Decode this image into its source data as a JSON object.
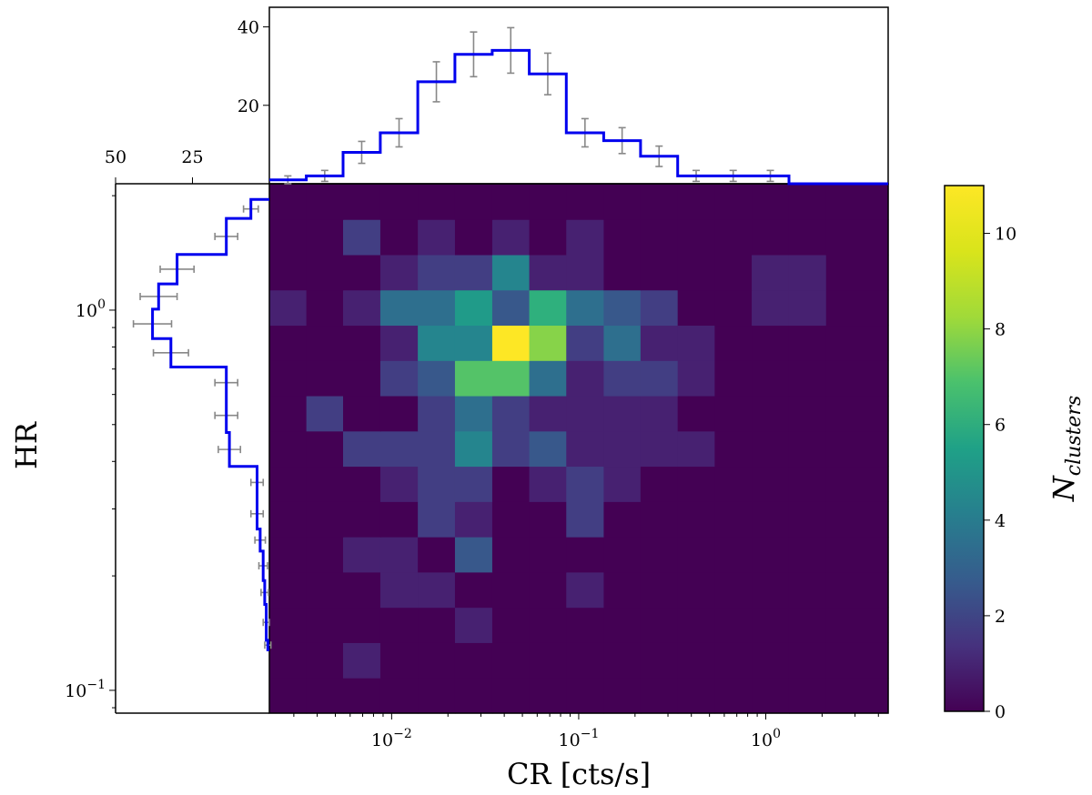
{
  "chart_data": {
    "type": "heatmap",
    "title": "",
    "xlabel": "CR [cts/s]",
    "ylabel": "HR",
    "colorbar_label": "N",
    "colorbar_label_sub": "clusters",
    "colormap": "viridis",
    "x_scale": "log",
    "y_scale": "log",
    "xlim": [
      0.00222,
      4.51
    ],
    "ylim": [
      0.0871,
      2.15
    ],
    "x_edges": [
      0.00222,
      0.0035,
      0.0055,
      0.0087,
      0.0138,
      0.0218,
      0.0345,
      0.0544,
      0.0858,
      0.136,
      0.214,
      0.338,
      0.533,
      0.841,
      1.33,
      2.1,
      4.51
    ],
    "y_edges": [
      0.0871,
      0.1079,
      0.1336,
      0.1654,
      0.2048,
      0.2535,
      0.3139,
      0.3887,
      0.4812,
      0.5958,
      0.7376,
      0.9132,
      1.1307,
      1.3998,
      1.7331,
      2.15
    ],
    "counts": [
      [
        0,
        0,
        0,
        0,
        0,
        0,
        0,
        0,
        0,
        0,
        0,
        0,
        0,
        0,
        0,
        0
      ],
      [
        0,
        0,
        1,
        0,
        0,
        0,
        0,
        0,
        0,
        0,
        0,
        0,
        0,
        0,
        0,
        0
      ],
      [
        0,
        0,
        0,
        0,
        0,
        1,
        0,
        0,
        0,
        0,
        0,
        0,
        0,
        0,
        0,
        0
      ],
      [
        0,
        0,
        0,
        1,
        1,
        0,
        0,
        0,
        1,
        0,
        0,
        0,
        0,
        0,
        0,
        0
      ],
      [
        0,
        0,
        1,
        1,
        0,
        3,
        0,
        0,
        0,
        0,
        0,
        0,
        0,
        0,
        0,
        0
      ],
      [
        0,
        0,
        0,
        0,
        2,
        1,
        0,
        0,
        2,
        0,
        0,
        0,
        0,
        0,
        0,
        0
      ],
      [
        0,
        0,
        0,
        1,
        2,
        2,
        0,
        1,
        2,
        1,
        0,
        0,
        0,
        0,
        0,
        0
      ],
      [
        0,
        0,
        2,
        2,
        2,
        5,
        2,
        3,
        1,
        1,
        1,
        1,
        0,
        0,
        0,
        0
      ],
      [
        0,
        2,
        0,
        0,
        2,
        4,
        2,
        1,
        1,
        1,
        1,
        0,
        0,
        0,
        0,
        0
      ],
      [
        0,
        0,
        0,
        2,
        3,
        8,
        8,
        4,
        1,
        2,
        2,
        1,
        0,
        0,
        0,
        0
      ],
      [
        0,
        0,
        0,
        1,
        5,
        5,
        11,
        9,
        2,
        4,
        1,
        1,
        0,
        0,
        0,
        0
      ],
      [
        1,
        0,
        1,
        4,
        4,
        6,
        3,
        7,
        4,
        3,
        2,
        0,
        0,
        1,
        1,
        0
      ],
      [
        0,
        0,
        0,
        1,
        2,
        2,
        5,
        1,
        1,
        0,
        0,
        0,
        0,
        1,
        1,
        0
      ],
      [
        0,
        0,
        2,
        0,
        1,
        0,
        1,
        0,
        1,
        0,
        0,
        0,
        0,
        0,
        0,
        0
      ],
      [
        0,
        0,
        0,
        0,
        0,
        0,
        0,
        0,
        0,
        0,
        0,
        0,
        0,
        0,
        0,
        0
      ]
    ],
    "color_range": [
      0,
      11
    ],
    "colorbar_ticks": [
      0,
      2,
      4,
      6,
      8,
      10
    ],
    "x_ticks": [
      0.01,
      0.1,
      1
    ],
    "x_tick_labels": [
      {
        "base": "10",
        "exp": "−2"
      },
      {
        "base": "10",
        "exp": "−1"
      },
      {
        "base": "10",
        "exp": "0"
      }
    ],
    "y_ticks": [
      0.1,
      1
    ],
    "y_tick_labels": [
      {
        "base": "10",
        "exp": "−1"
      },
      {
        "base": "10",
        "exp": "0"
      }
    ],
    "top_histogram": {
      "type": "step",
      "color": "#0000ee",
      "ylim": [
        0,
        45
      ],
      "y_ticks": [
        20,
        40
      ],
      "bin_edges": [
        0.00222,
        0.0035,
        0.0055,
        0.0087,
        0.0138,
        0.0218,
        0.0345,
        0.0544,
        0.0858,
        0.136,
        0.214,
        0.338,
        0.533,
        0.841,
        1.33,
        2.1,
        4.51
      ],
      "counts": [
        1,
        2,
        8,
        13,
        26,
        33,
        34,
        28,
        13,
        11,
        7,
        2,
        2,
        2,
        0,
        0
      ],
      "error_bar_color": "#888888",
      "errors": [
        1,
        1.4,
        2.8,
        3.6,
        5.1,
        5.7,
        5.8,
        5.3,
        3.6,
        3.3,
        2.6,
        1.4,
        1.4,
        1.4,
        0,
        0
      ]
    },
    "side_histogram": {
      "type": "step",
      "orientation": "horizontal",
      "color": "#0000ee",
      "xlim": [
        0,
        50
      ],
      "x_inverted": true,
      "x_ticks": [
        25,
        50
      ],
      "counts": [
        0.5,
        1,
        1.5,
        2,
        3,
        4,
        4,
        13,
        14,
        14,
        32,
        38,
        36,
        30,
        14,
        6
      ],
      "count_bin_edges": [
        0.1277,
        0.1354,
        0.1682,
        0.1945,
        0.2324,
        0.2656,
        0.3196,
        0.3881,
        0.4766,
        0.5862,
        0.7087,
        0.8418,
        1.0058,
        1.1725,
        1.4007,
        1.7432,
        1.9542
      ],
      "errors": [
        1,
        1,
        1.2,
        1.4,
        1.7,
        2,
        2,
        3.6,
        3.7,
        3.7,
        5.7,
        6.2,
        6,
        5.5,
        3.7,
        2.4
      ],
      "error_bar_color": "#888888"
    }
  }
}
